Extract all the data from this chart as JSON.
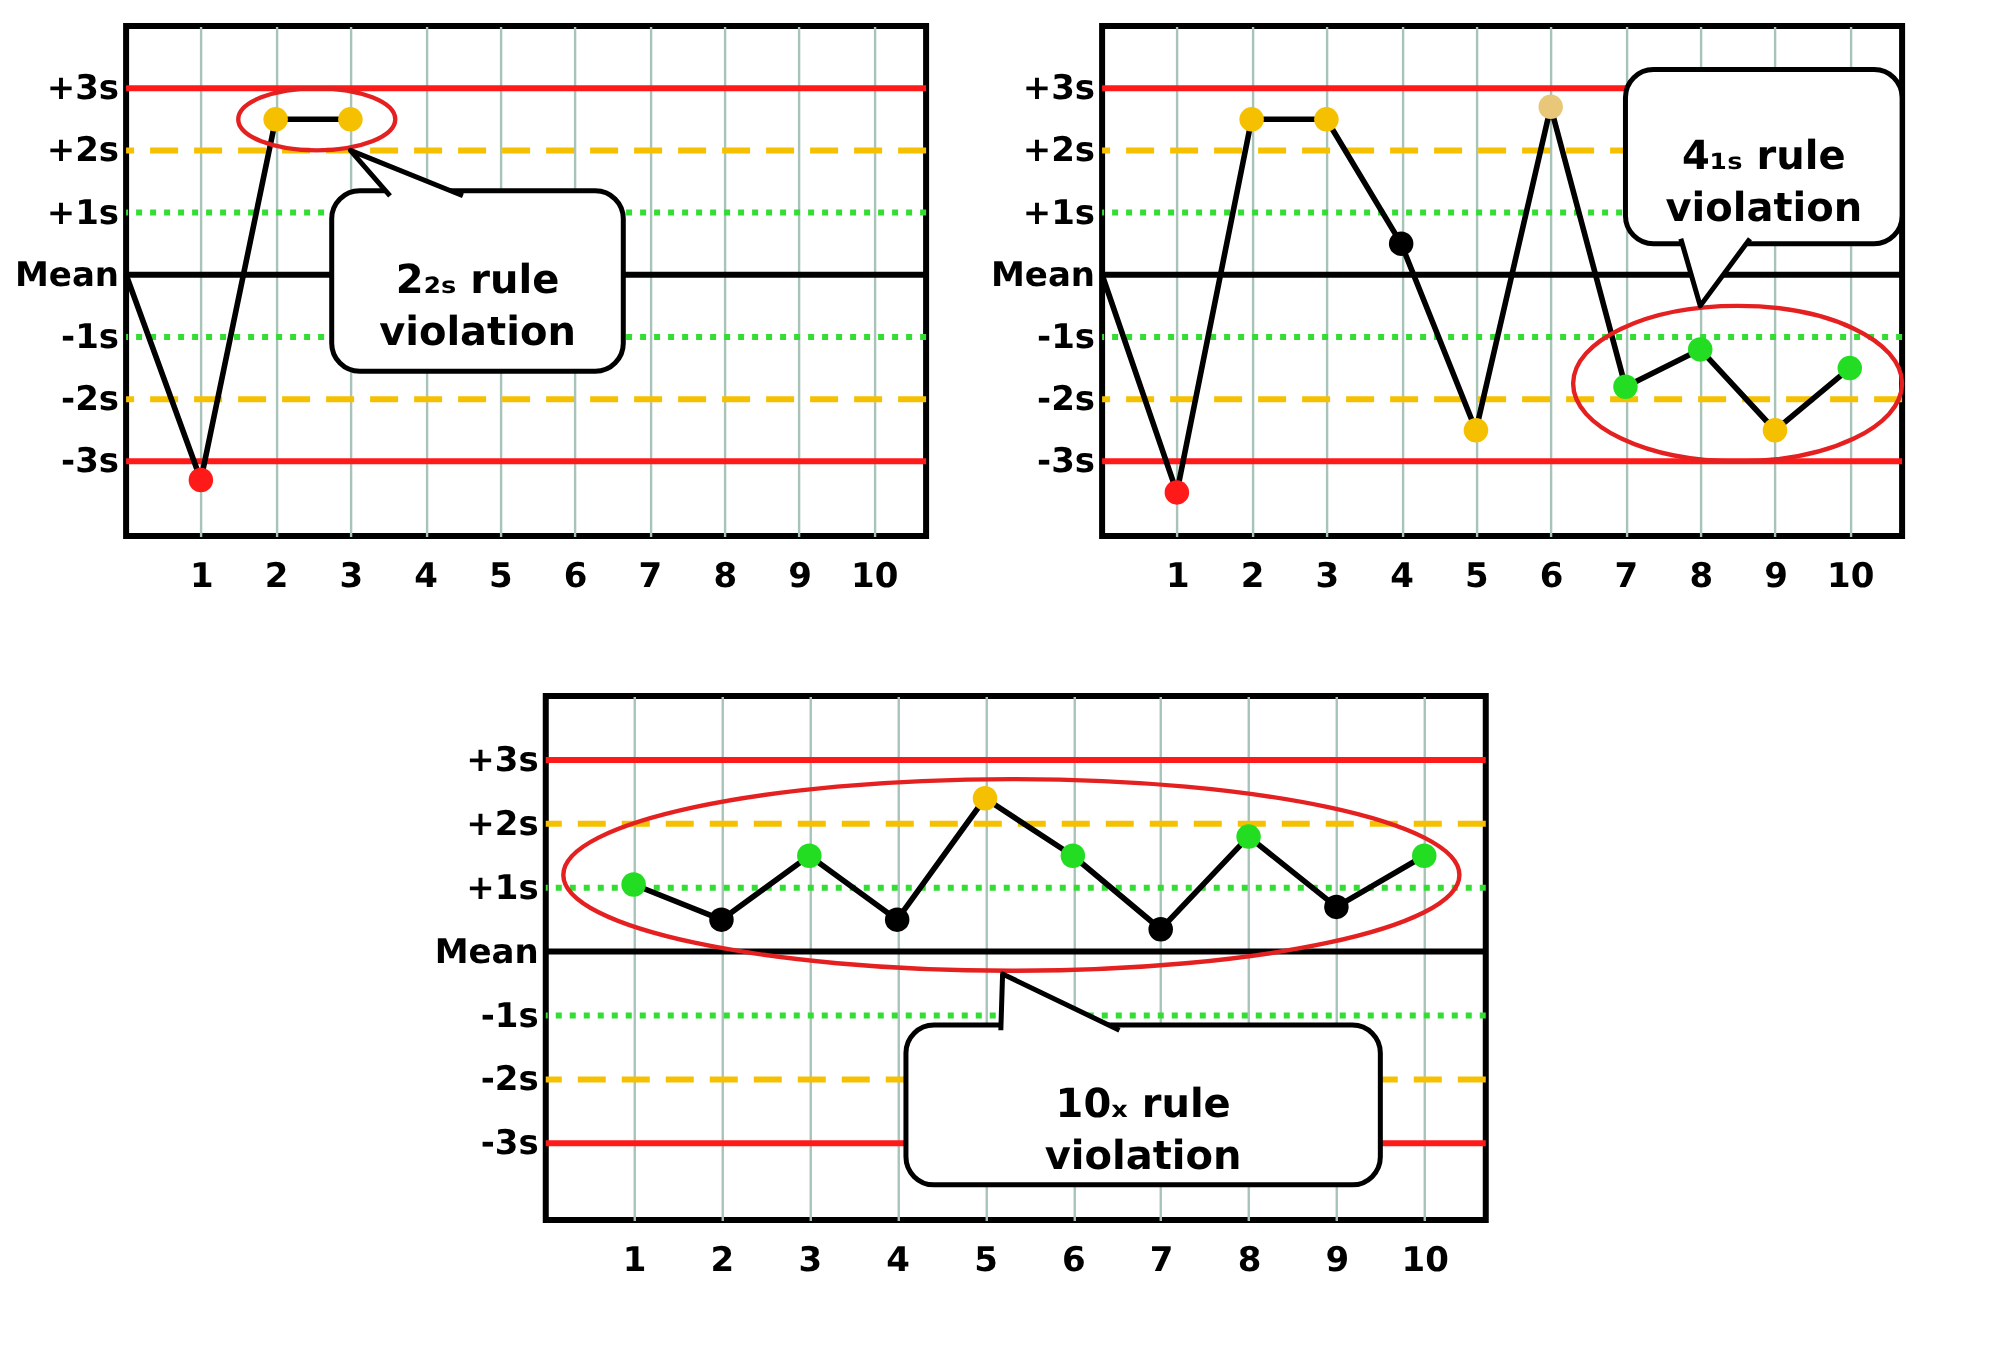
{
  "chart_data": [
    {
      "type": "line",
      "xlim": [
        0,
        10.7
      ],
      "xticks": [
        1,
        2,
        3,
        4,
        5,
        6,
        7,
        8,
        9,
        10
      ],
      "ylim": [
        -4.2,
        4
      ],
      "yticks": [
        {
          "value": 3,
          "label": "+3s"
        },
        {
          "value": 2,
          "label": "+2s"
        },
        {
          "value": 1,
          "label": "+1s"
        },
        {
          "value": 0,
          "label": "Mean"
        },
        {
          "value": -1,
          "label": "-1s"
        },
        {
          "value": -2,
          "label": "-2s"
        },
        {
          "value": -3,
          "label": "-3s"
        }
      ],
      "grid": "x",
      "marker": "circle",
      "line_style": "solid",
      "series": [
        {
          "x": [
            0,
            1,
            2,
            3
          ],
          "values": [
            0,
            -3.3,
            2.5,
            2.5
          ],
          "color": "#000000",
          "colors": [
            null,
            "#ff1a1a",
            "#f5c000",
            "#f5c000"
          ]
        }
      ],
      "ref_lines": [
        {
          "axis": "y",
          "value": 3,
          "label": null,
          "color": "#ff1a1a",
          "line_style": "solid"
        },
        {
          "axis": "y",
          "value": 2,
          "label": null,
          "color": "#f5c000",
          "line_style": "dashed"
        },
        {
          "axis": "y",
          "value": 1,
          "label": null,
          "color": "#33dd33",
          "line_style": "dotted"
        },
        {
          "axis": "y",
          "value": 0,
          "label": null,
          "color": "#000000",
          "line_style": "solid"
        },
        {
          "axis": "y",
          "value": -1,
          "label": null,
          "color": "#33dd33",
          "line_style": "dotted"
        },
        {
          "axis": "y",
          "value": -2,
          "label": null,
          "color": "#f5c000",
          "line_style": "dashed"
        },
        {
          "axis": "y",
          "value": -3,
          "label": null,
          "color": "#ff1a1a",
          "line_style": "solid"
        }
      ],
      "annotations": [
        "2₂ₛ rule\nviolation"
      ]
    },
    {
      "type": "line",
      "xlim": [
        0,
        10.7
      ],
      "xticks": [
        1,
        2,
        3,
        4,
        5,
        6,
        7,
        8,
        9,
        10
      ],
      "ylim": [
        -4.2,
        4
      ],
      "yticks": [
        {
          "value": 3,
          "label": "+3s"
        },
        {
          "value": 2,
          "label": "+2s"
        },
        {
          "value": 1,
          "label": "+1s"
        },
        {
          "value": 0,
          "label": "Mean"
        },
        {
          "value": -1,
          "label": "-1s"
        },
        {
          "value": -2,
          "label": "-2s"
        },
        {
          "value": -3,
          "label": "-3s"
        }
      ],
      "grid": "x",
      "marker": "circle",
      "line_style": "solid",
      "series": [
        {
          "x": [
            0,
            1,
            2,
            3,
            4,
            5,
            6,
            7,
            8,
            9,
            10
          ],
          "values": [
            0,
            -3.5,
            2.5,
            2.5,
            0.5,
            -2.5,
            2.7,
            -1.8,
            -1.2,
            -2.5,
            -1.5
          ],
          "color": "#000000",
          "colors": [
            null,
            "#ff1a1a",
            "#f5c000",
            "#f5c000",
            "#000000",
            "#f5c000",
            "#e8c878",
            "#22dd22",
            "#22dd22",
            "#f5c000",
            "#22dd22"
          ]
        }
      ],
      "ref_lines": [
        {
          "axis": "y",
          "value": 3,
          "label": null,
          "color": "#ff1a1a",
          "line_style": "solid"
        },
        {
          "axis": "y",
          "value": 2,
          "label": null,
          "color": "#f5c000",
          "line_style": "dashed"
        },
        {
          "axis": "y",
          "value": 1,
          "label": null,
          "color": "#33dd33",
          "line_style": "dotted"
        },
        {
          "axis": "y",
          "value": 0,
          "label": null,
          "color": "#000000",
          "line_style": "solid"
        },
        {
          "axis": "y",
          "value": -1,
          "label": null,
          "color": "#33dd33",
          "line_style": "dotted"
        },
        {
          "axis": "y",
          "value": -2,
          "label": null,
          "color": "#f5c000",
          "line_style": "dashed"
        },
        {
          "axis": "y",
          "value": -3,
          "label": null,
          "color": "#ff1a1a",
          "line_style": "solid"
        }
      ],
      "annotations": [
        "4₁ₛ rule\nviolation"
      ]
    },
    {
      "type": "line",
      "xlim": [
        0,
        10.7
      ],
      "xticks": [
        1,
        2,
        3,
        4,
        5,
        6,
        7,
        8,
        9,
        10
      ],
      "ylim": [
        -4.2,
        4
      ],
      "yticks": [
        {
          "value": 3,
          "label": "+3s"
        },
        {
          "value": 2,
          "label": "+2s"
        },
        {
          "value": 1,
          "label": "+1s"
        },
        {
          "value": 0,
          "label": "Mean"
        },
        {
          "value": -1,
          "label": "-1s"
        },
        {
          "value": -2,
          "label": "-2s"
        },
        {
          "value": -3,
          "label": "-3s"
        }
      ],
      "grid": "x",
      "marker": "circle",
      "line_style": "solid",
      "series": [
        {
          "x": [
            1,
            2,
            3,
            4,
            5,
            6,
            7,
            8,
            9,
            10
          ],
          "values": [
            1.05,
            0.5,
            1.5,
            0.5,
            2.4,
            1.5,
            0.35,
            1.8,
            0.7,
            1.5
          ],
          "color": "#000000",
          "colors": [
            "#22dd22",
            "#000000",
            "#22dd22",
            "#000000",
            "#f5c000",
            "#22dd22",
            "#000000",
            "#22dd22",
            "#000000",
            "#22dd22"
          ]
        }
      ],
      "ref_lines": [
        {
          "axis": "y",
          "value": 3,
          "label": null,
          "color": "#ff1a1a",
          "line_style": "solid"
        },
        {
          "axis": "y",
          "value": 2,
          "label": null,
          "color": "#f5c000",
          "line_style": "dashed"
        },
        {
          "axis": "y",
          "value": 1,
          "label": null,
          "color": "#33dd33",
          "line_style": "dotted"
        },
        {
          "axis": "y",
          "value": 0,
          "label": null,
          "color": "#000000",
          "line_style": "solid"
        },
        {
          "axis": "y",
          "value": -1,
          "label": null,
          "color": "#33dd33",
          "line_style": "dotted"
        },
        {
          "axis": "y",
          "value": -2,
          "label": null,
          "color": "#f5c000",
          "line_style": "dashed"
        },
        {
          "axis": "y",
          "value": -3,
          "label": null,
          "color": "#ff1a1a",
          "line_style": "solid"
        }
      ],
      "annotations": [
        "10ₓ rule\nviolation"
      ]
    }
  ]
}
